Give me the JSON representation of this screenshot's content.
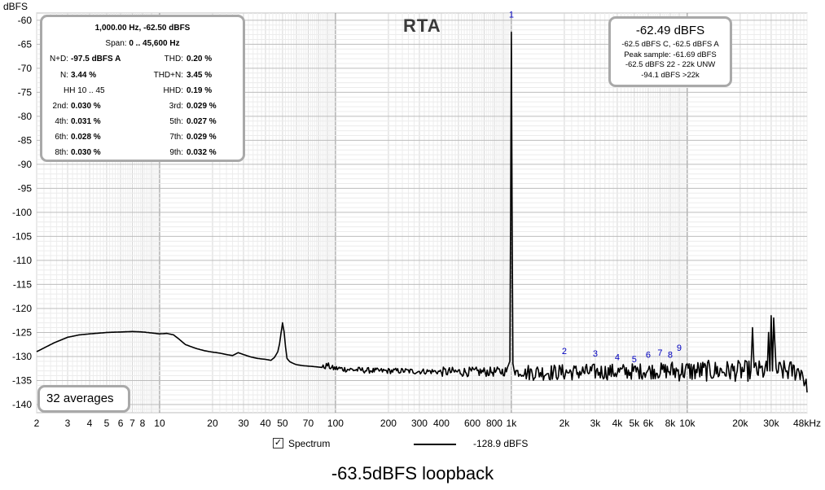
{
  "chart_data": {
    "type": "line",
    "title": "RTA",
    "ylabel": "dBFS",
    "xlabel": "",
    "xscale": "log",
    "xlim": [
      2,
      48000
    ],
    "ylim": [
      -142,
      -60
    ],
    "grid": true,
    "x_ticks": [
      2,
      3,
      4,
      5,
      6,
      7,
      8,
      10,
      20,
      30,
      40,
      50,
      70,
      100,
      200,
      300,
      400,
      600,
      800,
      1000,
      2000,
      3000,
      4000,
      5000,
      6000,
      8000,
      10000,
      20000,
      30000,
      48000
    ],
    "x_tick_labels": [
      "2",
      "3",
      "4",
      "5",
      "6",
      "7",
      "8",
      "10",
      "20",
      "30",
      "40",
      "50",
      "70",
      "100",
      "200",
      "300",
      "400",
      "600",
      "800",
      "1k",
      "2k",
      "3k",
      "4k",
      "5k",
      "6k",
      "8k",
      "10k",
      "20k",
      "30k",
      "48kHz"
    ],
    "y_ticks": [
      -60,
      -65,
      -70,
      -75,
      -80,
      -85,
      -90,
      -95,
      -100,
      -105,
      -110,
      -115,
      -120,
      -125,
      -130,
      -135,
      -140
    ],
    "y_tick_labels": [
      "-60",
      "-65",
      "-70",
      "-75",
      "-80",
      "-85",
      "-90",
      "-95",
      "-100",
      "-105",
      "-110",
      "-115",
      "-120",
      "-125",
      "-130",
      "-135",
      "-140"
    ],
    "series": [
      {
        "name": "Spectrum",
        "color": "#000000",
        "x": [
          2,
          2.5,
          3,
          3.5,
          4,
          5,
          6,
          7,
          8,
          9,
          10,
          11,
          12,
          13,
          14,
          16,
          18,
          20,
          22,
          24,
          26,
          28,
          30,
          33,
          36,
          40,
          43,
          45,
          47,
          48,
          49,
          50,
          51,
          52,
          53,
          55,
          58,
          60,
          65,
          70,
          75,
          80,
          85,
          90,
          95,
          100,
          105,
          110,
          120,
          130,
          140,
          150,
          160,
          170,
          180,
          190,
          200,
          220,
          250,
          280,
          300,
          350,
          400,
          500,
          600,
          700,
          800,
          900,
          950,
          980,
          990,
          1000,
          1010,
          1020,
          1050,
          1100,
          1200,
          1500,
          2000,
          3000,
          4000,
          5000,
          6000,
          8000,
          10000,
          15000,
          20000,
          23000,
          23500,
          24000,
          24500,
          25000,
          27000,
          28500,
          29000,
          29500,
          30000,
          30500,
          31000,
          32000,
          35000,
          40000,
          45000,
          48000
        ],
        "y": [
          -129,
          -127.2,
          -126,
          -125.5,
          -125.3,
          -125,
          -124.9,
          -124.8,
          -124.9,
          -125.1,
          -125.3,
          -125.2,
          -125.5,
          -126.5,
          -127.5,
          -128.3,
          -128.8,
          -129.1,
          -129.3,
          -129.6,
          -129.8,
          -129.2,
          -129.6,
          -130.1,
          -130.4,
          -130.6,
          -130.8,
          -130.2,
          -129,
          -127.5,
          -125.2,
          -123,
          -124.8,
          -128,
          -130.4,
          -131.1,
          -131.5,
          -131.7,
          -131.9,
          -132,
          -132.1,
          -132.2,
          -132.3,
          -131.8,
          -132.4,
          -132.5,
          -132.5,
          -132.6,
          -132.7,
          -132.8,
          -132.8,
          -132.9,
          -132.9,
          -133,
          -133,
          -133,
          -133,
          -133,
          -133,
          -133.1,
          -133.1,
          -133.1,
          -133.2,
          -133.2,
          -133.2,
          -133.2,
          -133.2,
          -133.1,
          -133,
          -131,
          -100,
          -62.5,
          -100,
          -131,
          -133,
          -133.3,
          -133.3,
          -133.3,
          -133.3,
          -133.2,
          -133.2,
          -133.1,
          -133,
          -133,
          -133,
          -133,
          -133,
          -133,
          -124,
          -133,
          -133,
          -133,
          -133,
          -133,
          -125,
          -133,
          -121.5,
          -133,
          -122,
          -133,
          -133,
          -133,
          -133,
          -137.5
        ]
      }
    ],
    "annotations": [
      "1",
      "2",
      "3",
      "4",
      "5",
      "6",
      "7",
      "8",
      "9"
    ],
    "annotation_x": [
      1000,
      2000,
      3000,
      4000,
      5000,
      6000,
      7000,
      8000,
      9000
    ],
    "annotation_y": [
      -59.4,
      -129.5,
      -130,
      -130.8,
      -131.2,
      -130.3,
      -129.8,
      -130.3,
      -128.8
    ]
  },
  "panels": {
    "distortion": {
      "header1": "1,000.00 Hz, -62.50 dBFS",
      "header2_label": "Span:",
      "header2_value": "0 .. 45,600 Hz",
      "nd_label": "N+D:",
      "nd_value": "-97.5 dBFS A",
      "thd_label": "THD:",
      "thd_value": "0.20 %",
      "n_label": "N:",
      "n_value": "3.44 %",
      "thdn_label": "THD+N:",
      "thdn_value": "3.45 %",
      "hh_label": "HH 10 .. 45",
      "hhd_label": "HHD:",
      "hhd_value": "0.19 %",
      "h2_label": "2nd:",
      "h2_value": "0.030 %",
      "h3_label": "3rd:",
      "h3_value": "0.029 %",
      "h4_label": "4th:",
      "h4_value": "0.031 %",
      "h5_label": "5th:",
      "h5_value": "0.027 %",
      "h6_label": "6th:",
      "h6_value": "0.028 %",
      "h7_label": "7th:",
      "h7_value": "0.029 %",
      "h8_label": "8th:",
      "h8_value": "0.030 %",
      "h9_label": "9th:",
      "h9_value": "0.032 %"
    },
    "level": {
      "main": "-62.49 dBFS",
      "line1": "-62.5 dBFS C, -62.5 dBFS A",
      "line2": "Peak sample: -61.69 dBFS",
      "line3": "-62.5 dBFS 22 - 22k UNW",
      "line4": "-94.1 dBFS >22k"
    },
    "averages": "32 averages"
  },
  "legend": {
    "checkbox_mark": "✓",
    "label": "Spectrum",
    "value": "-128.9 dBFS"
  },
  "caption": "-63.5dBFS loopback"
}
